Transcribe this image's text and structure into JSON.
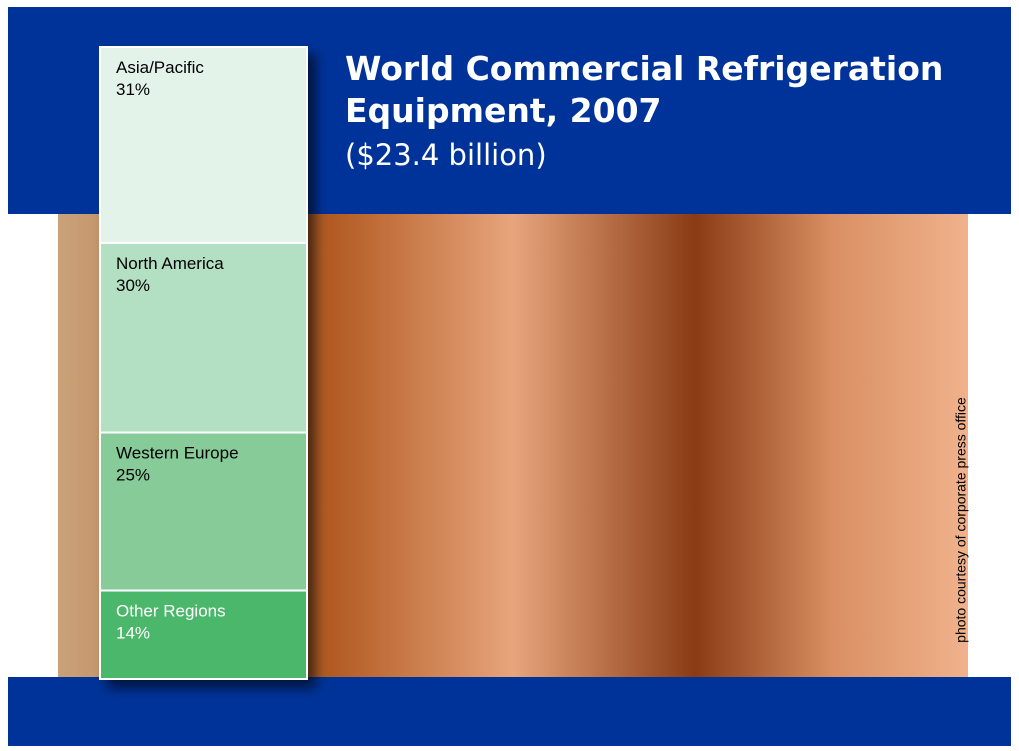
{
  "chart_data": {
    "type": "stacked-bar",
    "title": "World Commercial Refrigeration Equipment, 2007",
    "subtitle": "($23.4 billion)",
    "categories": [
      "Asia/Pacific",
      "North America",
      "Western Europe",
      "Other Regions"
    ],
    "values": [
      31,
      30,
      25,
      14
    ],
    "value_labels": [
      "31%",
      "30%",
      "25%",
      "14%"
    ],
    "colors": [
      "#e3f3ea",
      "#b3dfc2",
      "#86cb98",
      "#4bb76a"
    ],
    "annotation": "photo courtesy of corporate press office"
  }
}
